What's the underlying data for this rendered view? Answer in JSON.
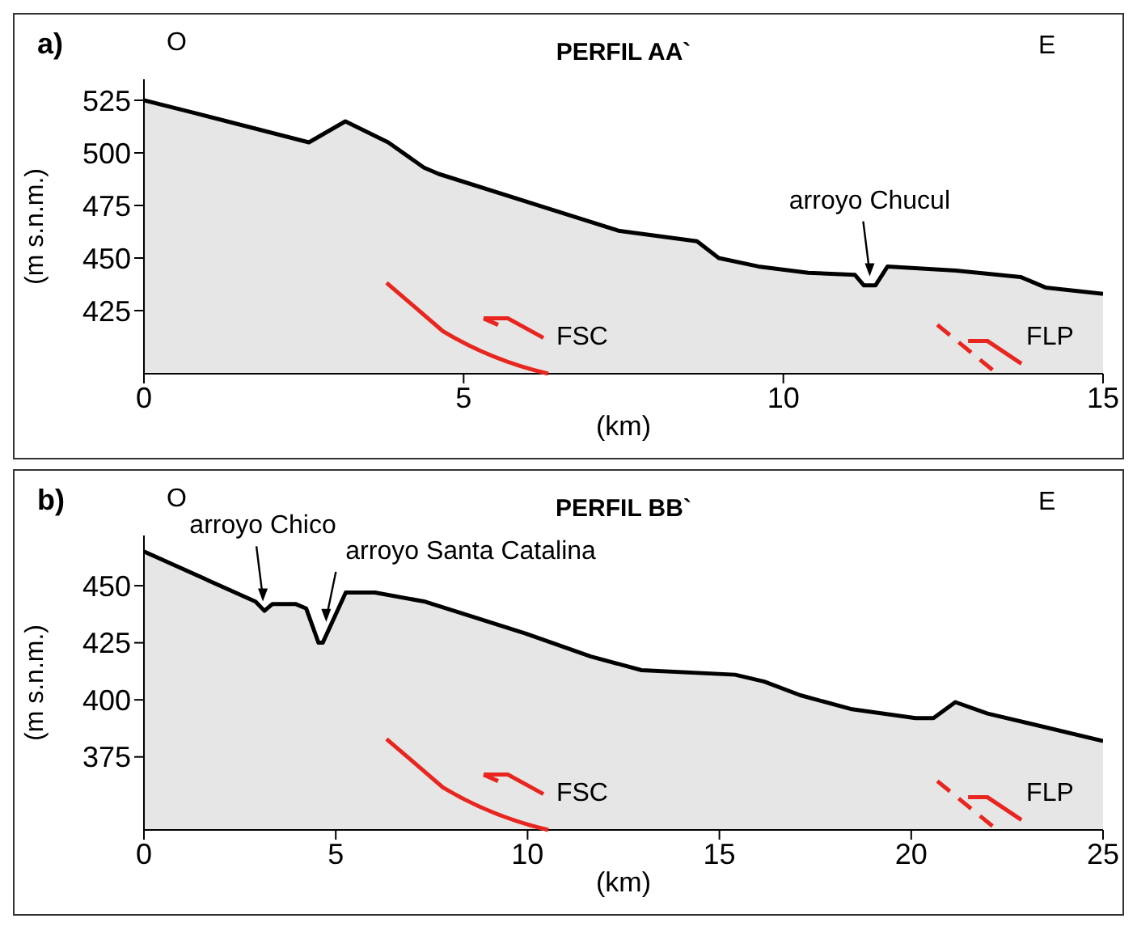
{
  "chart_data": [
    {
      "type": "area",
      "title": "PERFIL AA`",
      "xlabel": "(km)",
      "ylabel": "(m s.n.m.)",
      "x": [
        0,
        0.79,
        2.58,
        3.15,
        3.82,
        4.38,
        4.61,
        7.42,
        8.65,
        8.99,
        9.61,
        10.39,
        11.12,
        11.26,
        11.44,
        11.63,
        12.7,
        13.71,
        14.1,
        15
      ],
      "series": [
        {
          "color": "#e6e6e6",
          "values": [
            525,
            519,
            505,
            515,
            505,
            493,
            490,
            463,
            458,
            450,
            446,
            443,
            442,
            437,
            437,
            446,
            444,
            441,
            436,
            433
          ]
        }
      ],
      "xlim": [
        0,
        15
      ],
      "xticks": [
        0,
        5,
        10,
        15
      ],
      "ylim": [
        395,
        535
      ],
      "yticks": [
        425,
        450,
        475,
        500,
        525
      ],
      "annotations": [
        "a)",
        "O",
        "E",
        "FSC",
        "FLP",
        {
          "text": "arroyo Chucul",
          "x": 11.35,
          "y": 439
        }
      ]
    },
    {
      "type": "area",
      "title": "PERFIL BB`",
      "xlabel": "(km)",
      "ylabel": "(m s.n.m.)",
      "x": [
        0,
        2.91,
        3.14,
        3.35,
        3.95,
        4.23,
        4.55,
        4.66,
        5.26,
        6.02,
        7.33,
        9.96,
        11.65,
        12.97,
        15.41,
        16.17,
        17.11,
        18.42,
        20.11,
        20.58,
        21.15,
        21.99,
        25
      ],
      "series": [
        {
          "color": "#e6e6e6",
          "values": [
            465,
            443,
            439,
            442,
            442,
            440,
            425,
            425,
            447,
            447,
            443,
            429,
            419,
            413,
            411,
            408,
            402,
            396,
            392,
            392,
            399,
            394,
            382
          ]
        }
      ],
      "xlim": [
        0,
        25
      ],
      "xticks": [
        0,
        5,
        10,
        15,
        20,
        25
      ],
      "ylim": [
        343,
        472
      ],
      "yticks": [
        375,
        400,
        425,
        450
      ],
      "annotations": [
        "b)",
        "O",
        "E",
        "FSC",
        "FLP",
        {
          "text": "arroyo Chico",
          "x": 3.1,
          "y": 441
        },
        {
          "text": "arroyo Santa Catalina",
          "x": 4.75,
          "y": 432
        }
      ]
    }
  ]
}
